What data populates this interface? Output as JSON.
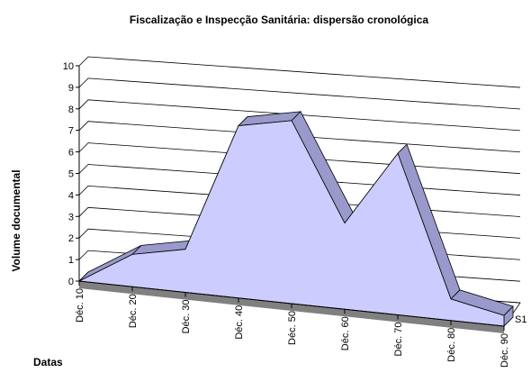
{
  "chart_data": {
    "type": "area3d",
    "title": "Fiscalização e Inspecção Sanitária: dispersão cronológica",
    "y_label": "Volume documental",
    "x_label": "Datas",
    "categories": [
      "Déc. 10",
      "Déc. 20",
      "Déc. 30",
      "Déc. 40",
      "Déc. 50",
      "Déc. 60",
      "Déc. 70",
      "Déc. 80",
      "Déc. 90"
    ],
    "series": [
      {
        "name": "S1",
        "color": "#ccccff",
        "values": [
          0,
          1.5,
          2,
          8,
          8.5,
          4,
          7.5,
          1,
          0.5
        ]
      }
    ],
    "ylim": [
      0,
      10
    ],
    "yticks": [
      0,
      1,
      2,
      3,
      4,
      5,
      6,
      7,
      8,
      9,
      10
    ],
    "grid": true
  }
}
